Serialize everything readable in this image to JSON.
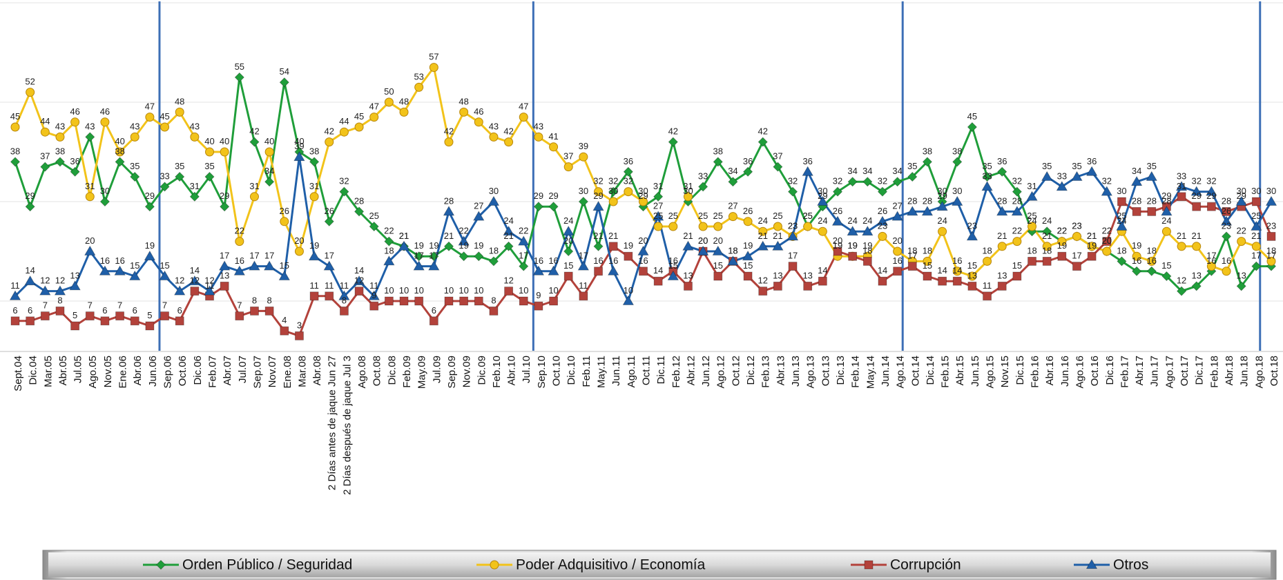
{
  "chart_data": {
    "type": "line",
    "categories": [
      "Sept.04",
      "Dic.04",
      "Mar.05",
      "Abr.05",
      "Jul.05",
      "Ago.05",
      "Nov.05",
      "Ene.06",
      "Abr.06",
      "Jun.06",
      "Sep.06",
      "Oct.06",
      "Dic.06",
      "Feb.07",
      "Abr.07",
      "Jul.07",
      "Sep.07",
      "Nov.07",
      "Ene.08",
      "Mar.08",
      "Abr.08",
      "2 Días antes de jaque Jun 27",
      "2 Días después de jaque Jul 3",
      "Ago.08",
      "Oct.08",
      "Dic.08",
      "Feb.09",
      "May.09",
      "Jul.09",
      "Sep.09",
      "Nov.09",
      "Dic.09",
      "Feb.10",
      "Abr.10",
      "Jul.10",
      "Sep.10",
      "Oct.10",
      "Dic.10",
      "Feb.11",
      "May.11",
      "Jun.11",
      "Ago.11",
      "Oct.11",
      "Dic.11",
      "Feb.12",
      "Abr.12",
      "Jun.12",
      "Ago.12",
      "Oct.12",
      "Dic.12",
      "Feb.13",
      "Abr.13",
      "Jun.13",
      "Ago.13",
      "Oct.13",
      "Dic.13",
      "Feb.14",
      "May.14",
      "Jun.14",
      "Ago.14",
      "Oct.14",
      "Dic.14",
      "Feb.15",
      "Abr.15",
      "Jun.15",
      "Ago.15",
      "Nov.15",
      "Dic.15",
      "Feb.16",
      "Abr.16",
      "Jun.16",
      "Ago.16",
      "Oct.16",
      "Dic.16",
      "Feb.17",
      "Abr.17",
      "Jun.17",
      "Ago.17",
      "Oct.17",
      "Dic.17",
      "Feb.18",
      "Abr.18",
      "Jun.18",
      "Ago.18",
      "Oct.18"
    ],
    "series": [
      {
        "name": "Orden Público / Seguridad",
        "color": "#1f9e3a",
        "marker": "diamond",
        "values": [
          38,
          29,
          37,
          38,
          36,
          43,
          30,
          38,
          35,
          29,
          33,
          35,
          31,
          35,
          29,
          55,
          42,
          34,
          54,
          40,
          38,
          26,
          32,
          28,
          25,
          22,
          21,
          19,
          19,
          21,
          19,
          19,
          18,
          21,
          17,
          29,
          29,
          20,
          30,
          21,
          32,
          36,
          29,
          31,
          42,
          30,
          33,
          38,
          34,
          36,
          42,
          37,
          32,
          25,
          29,
          32,
          34,
          34,
          32,
          34,
          35,
          38,
          30,
          38,
          45,
          35,
          36,
          32,
          24,
          24,
          22,
          23,
          21,
          20,
          18,
          16,
          16,
          15,
          12,
          13,
          16,
          23,
          13,
          17,
          17
        ]
      },
      {
        "name": "Poder Adquisitivo / Economía",
        "color": "#f2c31a",
        "marker": "circle",
        "values": [
          45,
          52,
          44,
          43,
          46,
          31,
          46,
          40,
          43,
          47,
          45,
          48,
          43,
          40,
          40,
          22,
          31,
          40,
          26,
          20,
          31,
          42,
          44,
          45,
          47,
          50,
          48,
          53,
          57,
          42,
          48,
          46,
          43,
          42,
          47,
          43,
          41,
          37,
          39,
          32,
          30,
          32,
          30,
          25,
          25,
          31,
          25,
          25,
          27,
          26,
          24,
          25,
          23,
          25,
          24,
          19,
          19,
          19,
          23,
          20,
          18,
          18,
          24,
          16,
          15,
          18,
          21,
          22,
          25,
          21,
          22,
          23,
          21,
          20,
          24,
          19,
          18,
          24,
          21,
          21,
          17,
          16,
          22,
          21,
          18
        ]
      },
      {
        "name": "Corrupción",
        "color": "#b3423b",
        "marker": "square",
        "values": [
          6,
          6,
          7,
          8,
          5,
          7,
          6,
          7,
          6,
          5,
          7,
          6,
          12,
          11,
          13,
          7,
          8,
          8,
          4,
          3,
          11,
          11,
          8,
          12,
          9,
          10,
          10,
          10,
          6,
          10,
          10,
          10,
          8,
          12,
          10,
          9,
          10,
          15,
          11,
          16,
          21,
          19,
          16,
          14,
          16,
          13,
          20,
          15,
          18,
          15,
          12,
          13,
          17,
          13,
          14,
          20,
          19,
          18,
          14,
          16,
          17,
          15,
          14,
          14,
          13,
          11,
          13,
          15,
          18,
          18,
          19,
          17,
          19,
          22,
          30,
          28,
          28,
          29,
          31,
          29,
          29,
          28,
          29,
          30,
          23
        ]
      },
      {
        "name": "Otros",
        "color": "#1f5fa8",
        "marker": "triangle",
        "values": [
          11,
          14,
          12,
          12,
          13,
          20,
          16,
          16,
          15,
          19,
          15,
          12,
          14,
          12,
          17,
          16,
          17,
          17,
          15,
          39,
          19,
          17,
          11,
          14,
          11,
          18,
          21,
          17,
          17,
          28,
          22,
          27,
          30,
          24,
          22,
          16,
          16,
          24,
          17,
          29,
          16,
          10,
          20,
          27,
          15,
          21,
          20,
          20,
          18,
          19,
          21,
          21,
          23,
          36,
          30,
          26,
          24,
          24,
          26,
          27,
          28,
          28,
          29,
          30,
          23,
          33,
          28,
          28,
          31,
          35,
          33,
          35,
          36,
          32,
          25,
          34,
          35,
          28,
          33,
          32,
          32,
          26,
          30,
          25,
          30
        ]
      }
    ],
    "ylim": [
      0,
      70
    ],
    "yticks": [
      10,
      30,
      50,
      70
    ],
    "grid": true,
    "legend": "bottom"
  }
}
